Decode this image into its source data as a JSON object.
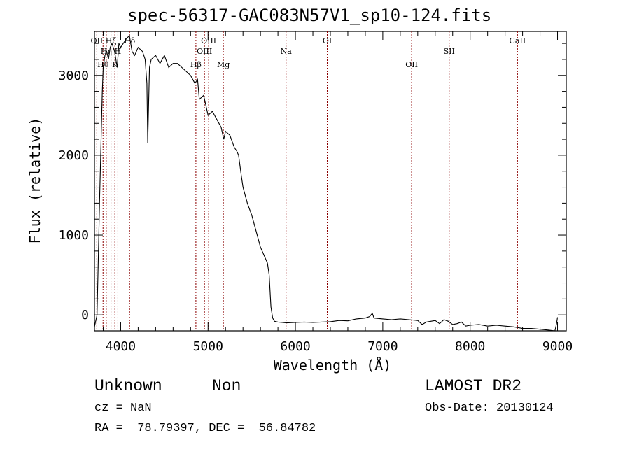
{
  "chart_data": {
    "type": "line",
    "title": "spec-56317-GAC083N57V1_sp10-124.fits",
    "xlabel": "Wavelength (Å)",
    "ylabel": "Flux (relative)",
    "xlim": [
      3700,
      9100
    ],
    "ylim": [
      -200,
      3550
    ],
    "xticks": [
      4000,
      5000,
      6000,
      7000,
      8000,
      9000
    ],
    "yticks": [
      0,
      1000,
      2000,
      3000
    ],
    "grid": false,
    "line_color": "#000000",
    "marker_color": "#8b0000",
    "series": [
      {
        "x": [
          3700,
          3730,
          3760,
          3790,
          3800,
          3820,
          3840,
          3860,
          3880,
          3900,
          3930,
          3960,
          3980,
          4000,
          4030,
          4060,
          4100,
          4130,
          4160,
          4200,
          4250,
          4280,
          4300,
          4310,
          4330,
          4350,
          4400,
          4450,
          4500,
          4550,
          4600,
          4650,
          4700,
          4750,
          4800,
          4850,
          4880,
          4900,
          4950,
          5000,
          5050,
          5100,
          5150,
          5180,
          5200,
          5250,
          5300,
          5330,
          5350,
          5380,
          5400,
          5450,
          5500,
          5550,
          5600,
          5620,
          5640,
          5660,
          5680,
          5700,
          5720,
          5740,
          5760,
          5800,
          5850,
          5900,
          6000,
          6100,
          6200,
          6300,
          6400,
          6500,
          6600,
          6700,
          6800,
          6850,
          6880,
          6900,
          7000,
          7100,
          7200,
          7300,
          7400,
          7450,
          7500,
          7550,
          7600,
          7650,
          7700,
          7750,
          7800,
          7850,
          7900,
          7950,
          8000,
          8100,
          8200,
          8300,
          8400,
          8500,
          8600,
          8700,
          8800,
          8900,
          8970,
          8990,
          9000
        ],
        "values": [
          -150,
          0,
          1500,
          2800,
          3100,
          3250,
          3300,
          3200,
          3350,
          3400,
          3300,
          3100,
          3400,
          3350,
          3400,
          3450,
          3500,
          3300,
          3250,
          3350,
          3300,
          3200,
          2900,
          2150,
          3100,
          3200,
          3250,
          3150,
          3250,
          3100,
          3150,
          3150,
          3100,
          3050,
          3000,
          2900,
          2950,
          2700,
          2750,
          2500,
          2550,
          2450,
          2350,
          2200,
          2300,
          2250,
          2100,
          2050,
          2000,
          1750,
          1600,
          1400,
          1250,
          1050,
          850,
          800,
          750,
          700,
          650,
          500,
          100,
          -40,
          -80,
          -90,
          -95,
          -100,
          -95,
          -90,
          -95,
          -90,
          -85,
          -70,
          -75,
          -50,
          -40,
          -20,
          20,
          -40,
          -50,
          -60,
          -50,
          -60,
          -70,
          -120,
          -90,
          -80,
          -70,
          -110,
          -60,
          -80,
          -120,
          -110,
          -90,
          -140,
          -130,
          -120,
          -140,
          -130,
          -140,
          -150,
          -170,
          -170,
          -180,
          -190,
          -200,
          -100,
          -30
        ]
      }
    ],
    "line_markers": [
      {
        "label": "OII",
        "wavelength": 3727
      },
      {
        "label": "Hθ",
        "wavelength": 3798
      },
      {
        "label": "Hη",
        "wavelength": 3835
      },
      {
        "label": "Hζ",
        "wavelength": 3889
      },
      {
        "label": "K",
        "wavelength": 3934
      },
      {
        "label": "H",
        "wavelength": 3968
      },
      {
        "label": "Hδ",
        "wavelength": 4102
      },
      {
        "label": "Hβ",
        "wavelength": 4861
      },
      {
        "label": "OIII",
        "wavelength": 4959
      },
      {
        "label": "OIII",
        "wavelength": 5007
      },
      {
        "label": "Mg",
        "wavelength": 5175
      },
      {
        "label": "Na",
        "wavelength": 5893
      },
      {
        "label": "OI",
        "wavelength": 6364
      },
      {
        "label": "OII",
        "wavelength": 7330
      },
      {
        "label": "SII",
        "wavelength": 7760
      },
      {
        "label": "CaII",
        "wavelength": 8542
      }
    ]
  },
  "info": {
    "class_text": "Unknown",
    "subclass_text": "Non",
    "cz_text": "cz = NaN",
    "radec_text": "RA =  78.79397, DEC =  56.84782",
    "survey_text": "LAMOST DR2",
    "obsdate_text": "Obs-Date: 20130124"
  }
}
